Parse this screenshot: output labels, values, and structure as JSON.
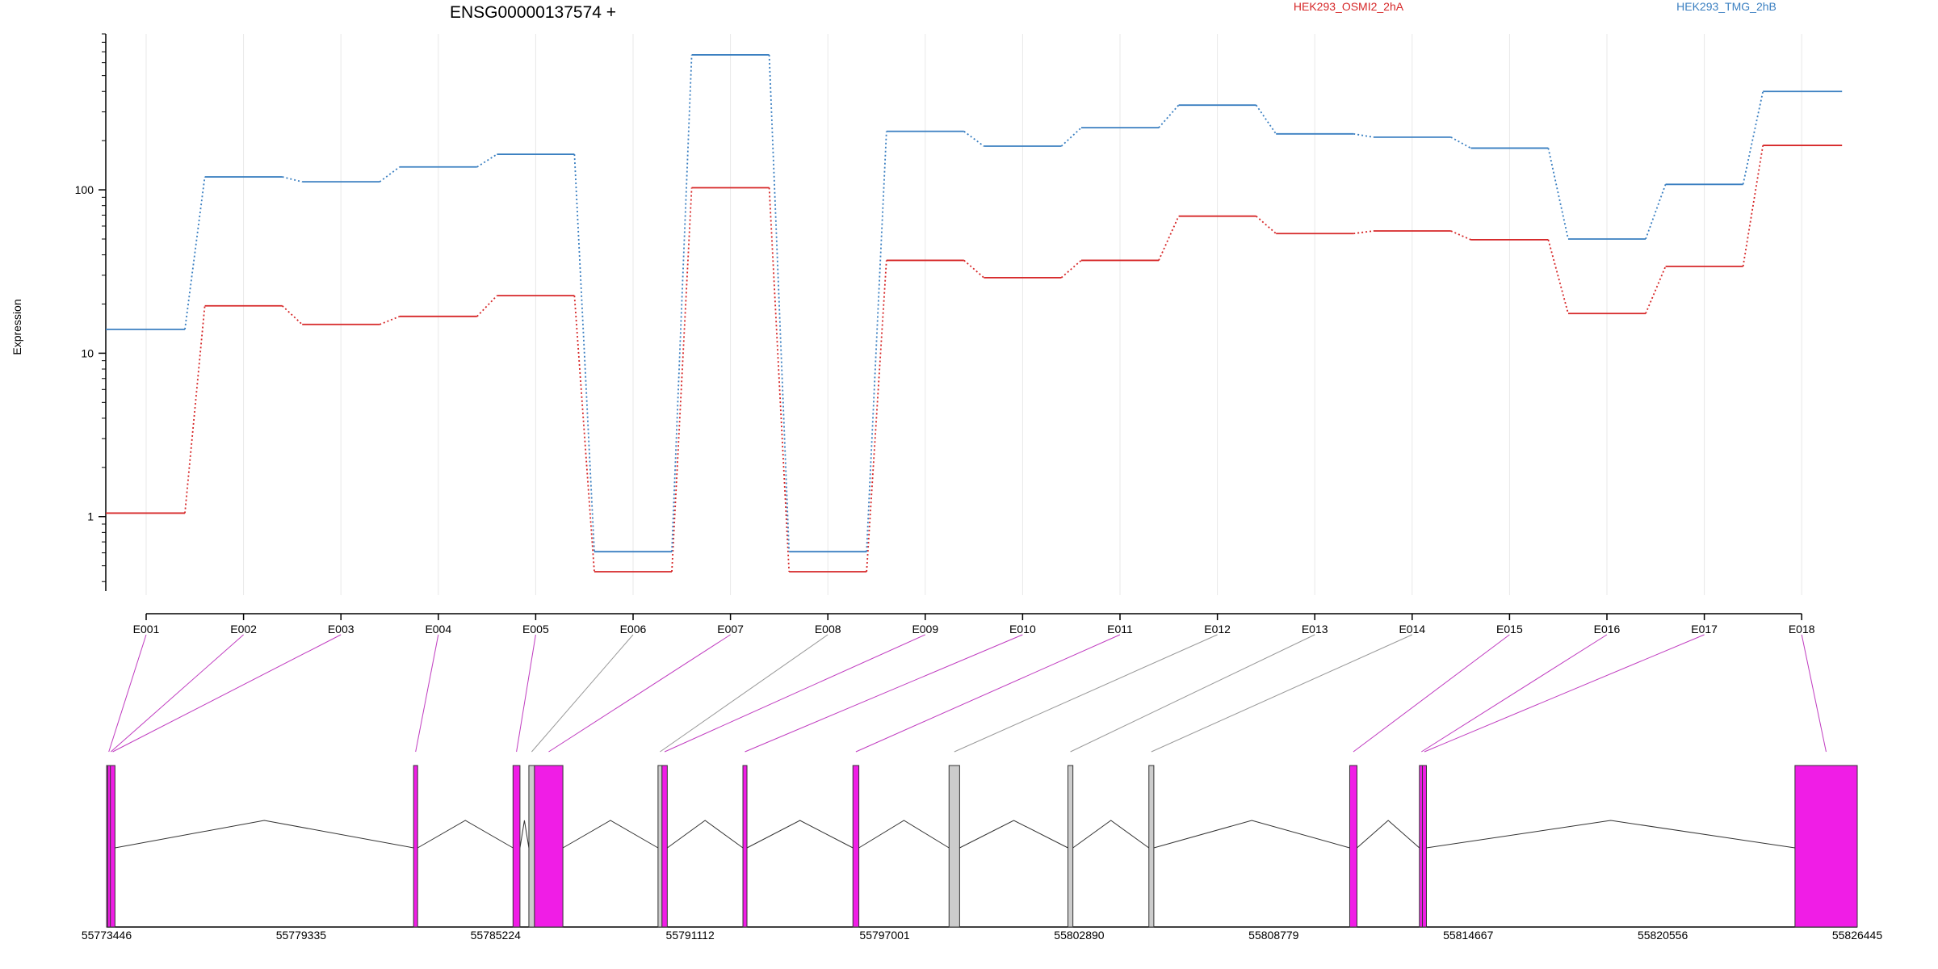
{
  "title": "ENSG00000137574 +",
  "ylabel": "Expression",
  "legend": [
    {
      "name": "HEK293_OSMI2_2hA",
      "color": "#d62728"
    },
    {
      "name": "HEK293_TMG_2hB",
      "color": "#3a7fc1"
    }
  ],
  "colors": {
    "sample_a": "#d62728",
    "sample_b": "#3a7fc1",
    "exon_highlight": "#f01de6",
    "exon_grey": "#cccccc",
    "connector_magenta": "#c03cc0",
    "connector_grey": "#999999",
    "grid": "#e8e8e8"
  },
  "chart_data": {
    "type": "line",
    "title": "ENSG00000137574 +",
    "xlabel": "",
    "ylabel": "Expression",
    "y_scale": "log",
    "ylim": [
      0.35,
      900
    ],
    "y_ticks": [
      1,
      10,
      100
    ],
    "y_tick_labels": [
      "1",
      "10",
      "100"
    ],
    "grid": "vertical lines at exon positions",
    "legend_placement": "top",
    "categories": [
      "E001",
      "E002",
      "E003",
      "E004",
      "E005",
      "E006",
      "E007",
      "E008",
      "E009",
      "E010",
      "E011",
      "E012",
      "E013",
      "E014",
      "E015",
      "E016",
      "E017",
      "E018"
    ],
    "series": [
      {
        "name": "HEK293_OSMI2_2hA",
        "color": "#d62728",
        "values": [
          1.05,
          19.5,
          15,
          16.8,
          22.5,
          0.46,
          103,
          0.46,
          37,
          29,
          37,
          69,
          54,
          56,
          49.5,
          17.5,
          34,
          187
        ]
      },
      {
        "name": "HEK293_TMG_2hB",
        "color": "#3a7fc1",
        "values": [
          14,
          120,
          112,
          138,
          165,
          0.61,
          670,
          0.61,
          228,
          185,
          240,
          330,
          220,
          210,
          180,
          50,
          108,
          400
        ]
      }
    ],
    "genomic_axis": {
      "tick_labels": [
        "55773446",
        "55779335",
        "55785224",
        "55791112",
        "55797001",
        "55802890",
        "55808779",
        "55814667",
        "55820556",
        "55826445"
      ],
      "range": [
        55773446,
        55826445
      ]
    },
    "exons": [
      {
        "id": "E001",
        "start": 55773446,
        "end": 55773580,
        "highlight": true
      },
      {
        "id": "E002",
        "start": 55773480,
        "end": 55773670,
        "highlight": true
      },
      {
        "id": "E003",
        "start": 55773560,
        "end": 55773700,
        "highlight": true
      },
      {
        "id": "E004",
        "start": 55782740,
        "end": 55782830,
        "highlight": true
      },
      {
        "id": "E005",
        "start": 55785750,
        "end": 55785960,
        "highlight": true
      },
      {
        "id": "E006",
        "start": 55786230,
        "end": 55786400,
        "highlight": false
      },
      {
        "id": "E007",
        "start": 55786400,
        "end": 55787260,
        "highlight": true
      },
      {
        "id": "E008",
        "start": 55790140,
        "end": 55790260,
        "highlight": false
      },
      {
        "id": "E009",
        "start": 55790260,
        "end": 55790420,
        "highlight": true
      },
      {
        "id": "E010",
        "start": 55792710,
        "end": 55792810,
        "highlight": true
      },
      {
        "id": "E011",
        "start": 55796040,
        "end": 55796220,
        "highlight": true
      },
      {
        "id": "E012",
        "start": 55798950,
        "end": 55799270,
        "highlight": false
      },
      {
        "id": "E013",
        "start": 55802550,
        "end": 55802700,
        "highlight": false
      },
      {
        "id": "E014",
        "start": 55805000,
        "end": 55805150,
        "highlight": false
      },
      {
        "id": "E015",
        "start": 55811080,
        "end": 55811300,
        "highlight": true
      },
      {
        "id": "E016",
        "start": 55813190,
        "end": 55813280,
        "highlight": true
      },
      {
        "id": "E017",
        "start": 55813280,
        "end": 55813350,
        "highlight": true
      },
      {
        "id": "E018",
        "start": 55824560,
        "end": 55826445,
        "highlight": true
      }
    ]
  }
}
